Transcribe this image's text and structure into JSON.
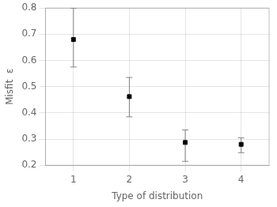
{
  "chart_data": {
    "type": "scatter",
    "x": [
      1,
      2,
      3,
      4
    ],
    "values": [
      0.68,
      0.462,
      0.287,
      0.28
    ],
    "error_lower": [
      0.105,
      0.077,
      0.072,
      0.032
    ],
    "error_upper": [
      0.12,
      0.073,
      0.048,
      0.025
    ],
    "xlabel": "Type of distribution",
    "ylabel": "Misfit  ε",
    "xlim": [
      0.5,
      4.5
    ],
    "ylim": [
      0.2,
      0.8
    ],
    "xticks": [
      1,
      2,
      3,
      4
    ],
    "yticks": [
      0.2,
      0.3,
      0.4,
      0.5,
      0.6,
      0.7,
      0.8
    ],
    "color": "black",
    "marker": "square",
    "grid": true
  }
}
